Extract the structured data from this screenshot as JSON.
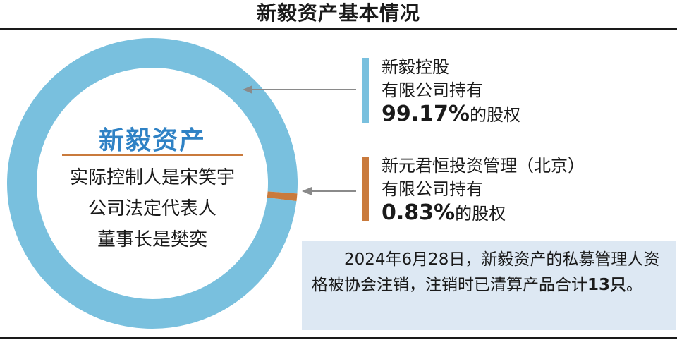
{
  "title": "新毅资产基本情况",
  "center": {
    "name": "新毅资产",
    "line1": "实际控制人是宋笑宇",
    "line2": "公司法定代表人",
    "line3": "董事长是樊奕"
  },
  "holders": [
    {
      "line1": "新毅控股",
      "line2": "有限公司持有",
      "pct": "99.17%",
      "suffix": "的股权"
    },
    {
      "line1": "新元君恒投资管理（北京）",
      "line2": "有限公司持有",
      "pct": "0.83%",
      "suffix": "的股权"
    }
  ],
  "note": {
    "text": "2024年6月28日，新毅资产的私募管理人资格被协会注销，注销时已清算产品合计",
    "count": "13只",
    "end": "。"
  },
  "colors": {
    "blue": "#79c0de",
    "orange": "#c97a3c",
    "title_blue": "#2f82c5",
    "note_bg": "#dde8f3",
    "arrow": "#8a8a8a"
  },
  "chart_data": {
    "type": "pie",
    "categories": [
      "新毅控股有限公司",
      "新元君恒投资管理（北京）有限公司"
    ],
    "values": [
      99.17,
      0.83
    ],
    "unit": "%",
    "colors": [
      "#79c0de",
      "#c97a3c"
    ]
  }
}
